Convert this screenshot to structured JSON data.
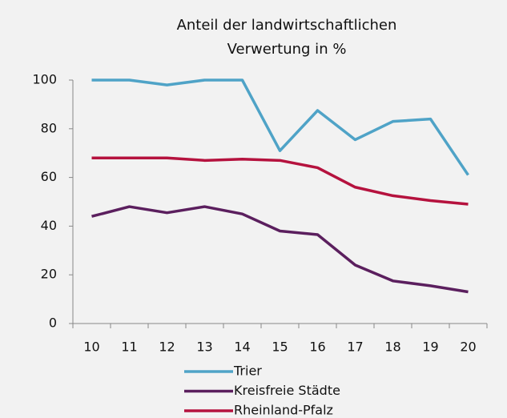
{
  "chart_data": {
    "type": "line",
    "title": [
      "Anteil der landwirtschaftlichen",
      "Verwertung in %"
    ],
    "categories": [
      "10",
      "11",
      "12",
      "13",
      "14",
      "15",
      "16",
      "17",
      "18",
      "19",
      "20"
    ],
    "series": [
      {
        "name": "Trier",
        "color": "#4fa3c7",
        "values": [
          100,
          100,
          98,
          100,
          100,
          71,
          87.5,
          75.5,
          83,
          84,
          61
        ]
      },
      {
        "name": "Kreisfreie Städte",
        "color": "#5b1f5e",
        "values": [
          44,
          48,
          45.5,
          48,
          45,
          38,
          36.5,
          24,
          17.5,
          15.5,
          13
        ]
      },
      {
        "name": "Rheinland-Pfalz",
        "color": "#b5123e",
        "values": [
          68,
          68,
          68,
          67,
          67.5,
          67,
          64,
          56,
          52.5,
          50.5,
          49
        ]
      }
    ],
    "ylim": [
      0,
      100
    ],
    "yticks": [
      0,
      20,
      40,
      60,
      80,
      100
    ],
    "legend": "bottom"
  }
}
